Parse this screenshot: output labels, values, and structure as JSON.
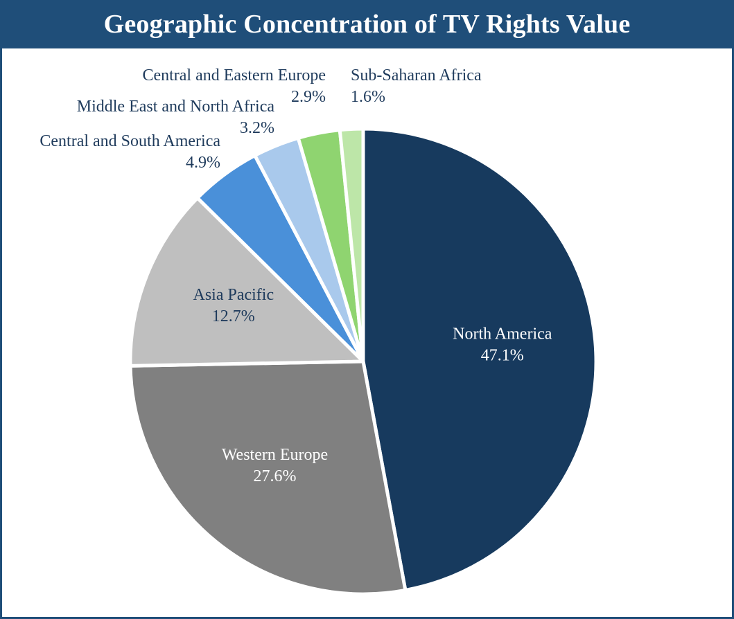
{
  "chart_data": {
    "type": "pie",
    "title": "Geographic Concentration of TV Rights Value",
    "start_angle_deg": 0,
    "direction": "clockwise",
    "slices": [
      {
        "label": "North America",
        "value": 47.1,
        "value_label": "47.1%",
        "color": "#173a5e",
        "label_color": "#ffffff",
        "label_position": "inside"
      },
      {
        "label": "Western Europe",
        "value": 27.6,
        "value_label": "27.6%",
        "color": "#808080",
        "label_color": "#ffffff",
        "label_position": "inside"
      },
      {
        "label": "Asia Pacific",
        "value": 12.7,
        "value_label": "12.7%",
        "color": "#bfbfbf",
        "label_color": "#1f3b5c",
        "label_position": "inside"
      },
      {
        "label": "Central and South America",
        "value": 4.9,
        "value_label": "4.9%",
        "color": "#4a90d9",
        "label_color": "#1f3b5c",
        "label_position": "outside"
      },
      {
        "label": "Middle East and North Africa",
        "value": 3.2,
        "value_label": "3.2%",
        "color": "#a9c9ec",
        "label_color": "#1f3b5c",
        "label_position": "outside"
      },
      {
        "label": "Central and Eastern Europe",
        "value": 2.9,
        "value_label": "2.9%",
        "color": "#8fd470",
        "label_color": "#1f3b5c",
        "label_position": "outside"
      },
      {
        "label": "Sub-Saharan Africa",
        "value": 1.6,
        "value_label": "1.6%",
        "color": "#bde6a8",
        "label_color": "#1f3b5c",
        "label_position": "outside"
      }
    ]
  }
}
